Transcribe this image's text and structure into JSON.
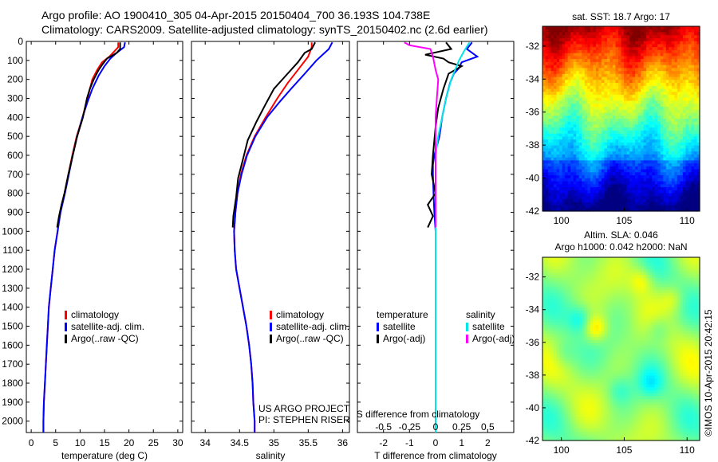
{
  "header": {
    "line1": "Argo profile: AO 1900410_305 04-Apr-2015 20150404_700 36.193S 104.738E",
    "line2": "Climatology: CARS2009. Satellite-adjusted climatology: synTS_20150402.nc (2.6d earlier)"
  },
  "side_text": "©IMOS 10-Apr-2015 20:42:15",
  "project_text": [
    "US ARGO PROJECT",
    "PI: STEPHEN RISER"
  ],
  "colors": {
    "climatology": "#ff0000",
    "satellite": "#0000ff",
    "argo": "#000000",
    "sal_satellite": "#00e5e5",
    "sal_argo": "#ff00ff"
  },
  "chart_data": [
    {
      "type": "line",
      "id": "temperature",
      "xlabel": "temperature (deg C)",
      "xlim": [
        -1,
        31
      ],
      "xticks": [
        0,
        5,
        10,
        15,
        20,
        25,
        30
      ],
      "ylim": [
        0,
        2060
      ],
      "yticks": [
        0,
        100,
        200,
        300,
        400,
        500,
        600,
        700,
        800,
        900,
        1000,
        1100,
        1200,
        1300,
        1400,
        1500,
        1600,
        1700,
        1800,
        1900,
        2000
      ],
      "legend": [
        "climatology",
        "satellite-adj. clim.",
        "Argo(..raw -QC)"
      ],
      "series": [
        {
          "name": "climatology",
          "color": "climatology",
          "points": [
            [
              17.8,
              5
            ],
            [
              17.8,
              30
            ],
            [
              16,
              80
            ],
            [
              14.5,
              110
            ],
            [
              13.5,
              150
            ],
            [
              12.5,
              200
            ],
            [
              11.5,
              300
            ],
            [
              10.5,
              400
            ],
            [
              9.3,
              500
            ],
            [
              8.4,
              600
            ],
            [
              7.6,
              700
            ],
            [
              6.8,
              800
            ],
            [
              5.9,
              900
            ],
            [
              5.4,
              1000
            ],
            [
              4.8,
              1100
            ],
            [
              4.4,
              1200
            ],
            [
              4.0,
              1300
            ],
            [
              3.6,
              1400
            ],
            [
              3.4,
              1500
            ],
            [
              3.2,
              1600
            ],
            [
              3.0,
              1700
            ],
            [
              2.8,
              1800
            ],
            [
              2.6,
              1900
            ],
            [
              2.5,
              2000
            ],
            [
              2.5,
              2060
            ]
          ]
        },
        {
          "name": "satellite-adj. clim.",
          "color": "satellite",
          "points": [
            [
              19.2,
              5
            ],
            [
              19,
              30
            ],
            [
              17.5,
              60
            ],
            [
              16.2,
              90
            ],
            [
              15,
              130
            ],
            [
              13.8,
              180
            ],
            [
              12.5,
              250
            ],
            [
              11.5,
              320
            ],
            [
              10.5,
              400
            ],
            [
              9.4,
              500
            ],
            [
              8.5,
              600
            ],
            [
              7.7,
              700
            ],
            [
              6.9,
              800
            ],
            [
              6.0,
              900
            ],
            [
              5.4,
              1000
            ],
            [
              4.8,
              1100
            ],
            [
              4.4,
              1200
            ],
            [
              4.0,
              1300
            ],
            [
              3.6,
              1400
            ],
            [
              3.4,
              1500
            ],
            [
              3.2,
              1600
            ],
            [
              3.0,
              1700
            ],
            [
              2.8,
              1800
            ],
            [
              2.6,
              1900
            ],
            [
              2.5,
              2000
            ],
            [
              2.5,
              2060
            ]
          ]
        },
        {
          "name": "Argo(..raw -QC)",
          "color": "argo",
          "points": [
            [
              18.2,
              5
            ],
            [
              18.2,
              40
            ],
            [
              17.5,
              60
            ],
            [
              15.5,
              90
            ],
            [
              14.6,
              120
            ],
            [
              13.8,
              150
            ],
            [
              12.8,
              200
            ],
            [
              12.0,
              250
            ],
            [
              11.4,
              300
            ],
            [
              10.6,
              400
            ],
            [
              9.4,
              500
            ],
            [
              8.5,
              600
            ],
            [
              7.6,
              700
            ],
            [
              6.8,
              800
            ],
            [
              6.2,
              860
            ],
            [
              5.7,
              920
            ],
            [
              5.3,
              980
            ]
          ]
        }
      ]
    },
    {
      "type": "line",
      "id": "salinity",
      "xlabel": "salinity",
      "xlim": [
        33.8,
        36.1
      ],
      "xticks": [
        34,
        34.5,
        35,
        35.5,
        36
      ],
      "xticklabels": [
        "34",
        "34.5",
        "35",
        "35.5",
        "36"
      ],
      "ylim": [
        0,
        2060
      ],
      "legend": [
        "climatology",
        "satellite-adj. clim.",
        "Argo(..raw -QC)"
      ],
      "series": [
        {
          "name": "climatology",
          "color": "climatology",
          "points": [
            [
              35.55,
              5
            ],
            [
              35.55,
              30
            ],
            [
              35.5,
              80
            ],
            [
              35.35,
              150
            ],
            [
              35.2,
              220
            ],
            [
              35.05,
              300
            ],
            [
              34.88,
              400
            ],
            [
              34.72,
              500
            ],
            [
              34.6,
              600
            ],
            [
              34.52,
              700
            ],
            [
              34.47,
              800
            ],
            [
              34.44,
              900
            ],
            [
              34.42,
              1000
            ],
            [
              34.43,
              1100
            ],
            [
              34.45,
              1200
            ],
            [
              34.5,
              1300
            ],
            [
              34.55,
              1400
            ],
            [
              34.6,
              1500
            ],
            [
              34.64,
              1600
            ],
            [
              34.67,
              1700
            ],
            [
              34.69,
              1800
            ],
            [
              34.7,
              1900
            ],
            [
              34.72,
              2000
            ],
            [
              34.72,
              2060
            ]
          ]
        },
        {
          "name": "satellite-adj. clim.",
          "color": "satellite",
          "points": [
            [
              35.85,
              5
            ],
            [
              35.8,
              40
            ],
            [
              35.62,
              100
            ],
            [
              35.45,
              170
            ],
            [
              35.25,
              250
            ],
            [
              35.08,
              320
            ],
            [
              34.9,
              400
            ],
            [
              34.73,
              500
            ],
            [
              34.61,
              600
            ],
            [
              34.53,
              700
            ],
            [
              34.47,
              800
            ],
            [
              34.44,
              900
            ],
            [
              34.42,
              1000
            ],
            [
              34.43,
              1100
            ],
            [
              34.45,
              1200
            ],
            [
              34.5,
              1300
            ],
            [
              34.55,
              1400
            ],
            [
              34.6,
              1500
            ],
            [
              34.64,
              1600
            ],
            [
              34.67,
              1700
            ],
            [
              34.69,
              1800
            ],
            [
              34.7,
              1900
            ],
            [
              34.72,
              2000
            ],
            [
              34.72,
              2060
            ]
          ]
        },
        {
          "name": "Argo(..raw -QC)",
          "color": "argo",
          "points": [
            [
              35.6,
              5
            ],
            [
              35.55,
              40
            ],
            [
              35.45,
              60
            ],
            [
              35.35,
              110
            ],
            [
              35.2,
              170
            ],
            [
              35.0,
              250
            ],
            [
              34.88,
              330
            ],
            [
              34.75,
              420
            ],
            [
              34.62,
              520
            ],
            [
              34.55,
              620
            ],
            [
              34.48,
              720
            ],
            [
              34.45,
              820
            ],
            [
              34.41,
              920
            ],
            [
              34.4,
              980
            ]
          ]
        }
      ]
    },
    {
      "type": "line",
      "id": "difference",
      "xlabel": "T difference from climatology",
      "xlabel2": "S difference from climatology",
      "xlim": [
        -3,
        3
      ],
      "xticks": [
        -2,
        -1,
        0,
        1,
        2
      ],
      "x2ticks": [
        -0.5,
        -0.25,
        0,
        0.25,
        0.5
      ],
      "x2ticklabels": [
        "-0.5",
        "-0.25",
        "0",
        "0.25",
        "0.5"
      ],
      "ylim": [
        0,
        2060
      ],
      "legend_headers": [
        "temperature",
        "salinity"
      ],
      "legend": [
        "satellite",
        "Argo(-adj)",
        "satellite",
        "Argo(-adj)"
      ],
      "series": [
        {
          "name": "temperature satellite",
          "color": "satellite",
          "points": [
            [
              1.4,
              5
            ],
            [
              1.2,
              40
            ],
            [
              1.6,
              80
            ],
            [
              1.0,
              110
            ],
            [
              0.9,
              140
            ],
            [
              0.7,
              170
            ],
            [
              0.55,
              220
            ],
            [
              0.4,
              300
            ],
            [
              0.25,
              400
            ],
            [
              0.15,
              500
            ],
            [
              -0.05,
              600
            ],
            [
              -0.1,
              650
            ],
            [
              -0.1,
              700
            ],
            [
              -0.08,
              800
            ],
            [
              -0.05,
              900
            ],
            [
              0,
              1000
            ],
            [
              0,
              1200
            ],
            [
              0,
              1400
            ],
            [
              0,
              1600
            ],
            [
              0,
              1800
            ],
            [
              0,
              2000
            ],
            [
              0,
              2060
            ]
          ]
        },
        {
          "name": "temperature Argo(-adj)",
          "color": "argo",
          "points": [
            [
              0.4,
              5
            ],
            [
              0.6,
              40
            ],
            [
              -0.4,
              70
            ],
            [
              0.3,
              90
            ],
            [
              0.5,
              110
            ],
            [
              1.0,
              130
            ],
            [
              0.5,
              170
            ],
            [
              0.3,
              250
            ],
            [
              0.1,
              350
            ],
            [
              0,
              450
            ],
            [
              -0.1,
              600
            ],
            [
              -0.15,
              700
            ],
            [
              0,
              800
            ],
            [
              -0.3,
              860
            ],
            [
              -0.1,
              920
            ],
            [
              -0.3,
              980
            ]
          ]
        },
        {
          "name": "salinity satellite",
          "color": "sal_satellite",
          "points": [
            [
              1.3,
              5
            ],
            [
              1.1,
              50
            ],
            [
              0.9,
              100
            ],
            [
              0.75,
              150
            ],
            [
              0.6,
              200
            ],
            [
              0.4,
              300
            ],
            [
              0.25,
              400
            ],
            [
              0.1,
              500
            ],
            [
              0,
              600
            ],
            [
              0,
              1000
            ],
            [
              0,
              1400
            ],
            [
              0,
              1800
            ],
            [
              0,
              2000
            ],
            [
              0,
              2060
            ]
          ]
        },
        {
          "name": "salinity Argo(-adj)",
          "color": "sal_argo",
          "points": [
            [
              -1.2,
              5
            ],
            [
              -1.0,
              20
            ],
            [
              -0.2,
              40
            ],
            [
              -0.1,
              80
            ],
            [
              0,
              150
            ],
            [
              0.1,
              200
            ],
            [
              0.05,
              300
            ],
            [
              0,
              400
            ],
            [
              0,
              600
            ],
            [
              0,
              800
            ],
            [
              0,
              980
            ]
          ]
        }
      ]
    },
    {
      "type": "heatmap",
      "id": "sst_map",
      "title": "sat. SST: 18.7 Argo: 17",
      "xlim": [
        98.5,
        111
      ],
      "ylim": [
        -42,
        -30.8
      ],
      "xticks": [
        100,
        105,
        110
      ],
      "yticks": [
        -42,
        -40,
        -38,
        -36,
        -34,
        -32
      ],
      "colormap": "jet",
      "description_values": "warm (red/orange) in north, cold (blue) in south"
    },
    {
      "type": "heatmap",
      "id": "sla_map",
      "title": "Altim. SLA: 0.046",
      "subtitle": "Argo h1000: 0.042 h2000: NaN",
      "xlim": [
        98.5,
        111
      ],
      "ylim": [
        -42,
        -30.8
      ],
      "xticks": [
        100,
        105,
        110
      ],
      "yticks": [
        -42,
        -40,
        -38,
        -36,
        -34,
        -32
      ],
      "colormap": "jet"
    }
  ]
}
